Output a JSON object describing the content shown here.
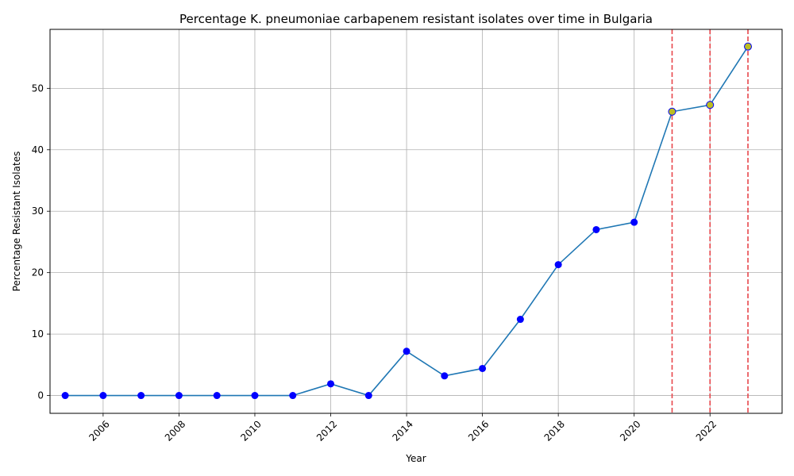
{
  "chart_data": {
    "type": "line",
    "title": "Percentage K. pneumoniae carbapenem resistant isolates over time in Bulgaria",
    "xlabel": "Year",
    "ylabel": "Percentage Resistant Isolates",
    "x": [
      2005,
      2006,
      2007,
      2008,
      2009,
      2010,
      2011,
      2012,
      2013,
      2014,
      2015,
      2016,
      2017,
      2018,
      2019,
      2020,
      2021,
      2022,
      2023
    ],
    "series": [
      {
        "values": [
          0,
          0,
          0,
          0,
          0,
          0,
          0,
          1.9,
          0,
          7.2,
          3.2,
          4.4,
          12.4,
          21.3,
          27.0,
          28.2,
          46.2,
          47.3,
          56.8
        ],
        "line_color": "#1f77b4",
        "marker_color": "#0000ff"
      }
    ],
    "highlighted_x": [
      2021,
      2022,
      2023
    ],
    "highlight_marker_color": "#bcbd22",
    "highlight_line_color": "#e8474c",
    "xlim": [
      2004.6,
      2023.9
    ],
    "ylim": [
      -2.9,
      59.6
    ],
    "x_ticks": [
      2006,
      2008,
      2010,
      2012,
      2014,
      2016,
      2018,
      2020,
      2022
    ],
    "y_ticks": [
      0,
      10,
      20,
      30,
      40,
      50
    ],
    "grid": true
  }
}
